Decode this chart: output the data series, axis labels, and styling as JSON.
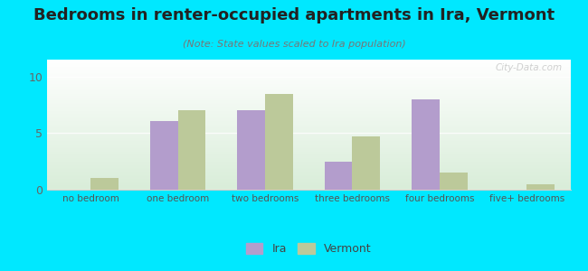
{
  "title": "Bedrooms in renter-occupied apartments in Ira, Vermont",
  "subtitle": "(Note: State values scaled to Ira population)",
  "categories": [
    "no bedroom",
    "one bedroom",
    "two bedrooms",
    "three bedrooms",
    "four bedrooms",
    "five+ bedrooms"
  ],
  "ira_values": [
    0,
    6.1,
    7.0,
    2.5,
    8.0,
    0
  ],
  "vermont_values": [
    1.0,
    7.0,
    8.5,
    4.7,
    1.5,
    0.5
  ],
  "ira_color": "#b39dcc",
  "vermont_color": "#bcc99a",
  "ylim": [
    0,
    11.5
  ],
  "yticks": [
    0,
    5,
    10
  ],
  "background_outer": "#00e8ff",
  "bar_width": 0.32,
  "legend_labels": [
    "Ira",
    "Vermont"
  ],
  "watermark": "City-Data.com",
  "title_fontsize": 13,
  "subtitle_fontsize": 8
}
